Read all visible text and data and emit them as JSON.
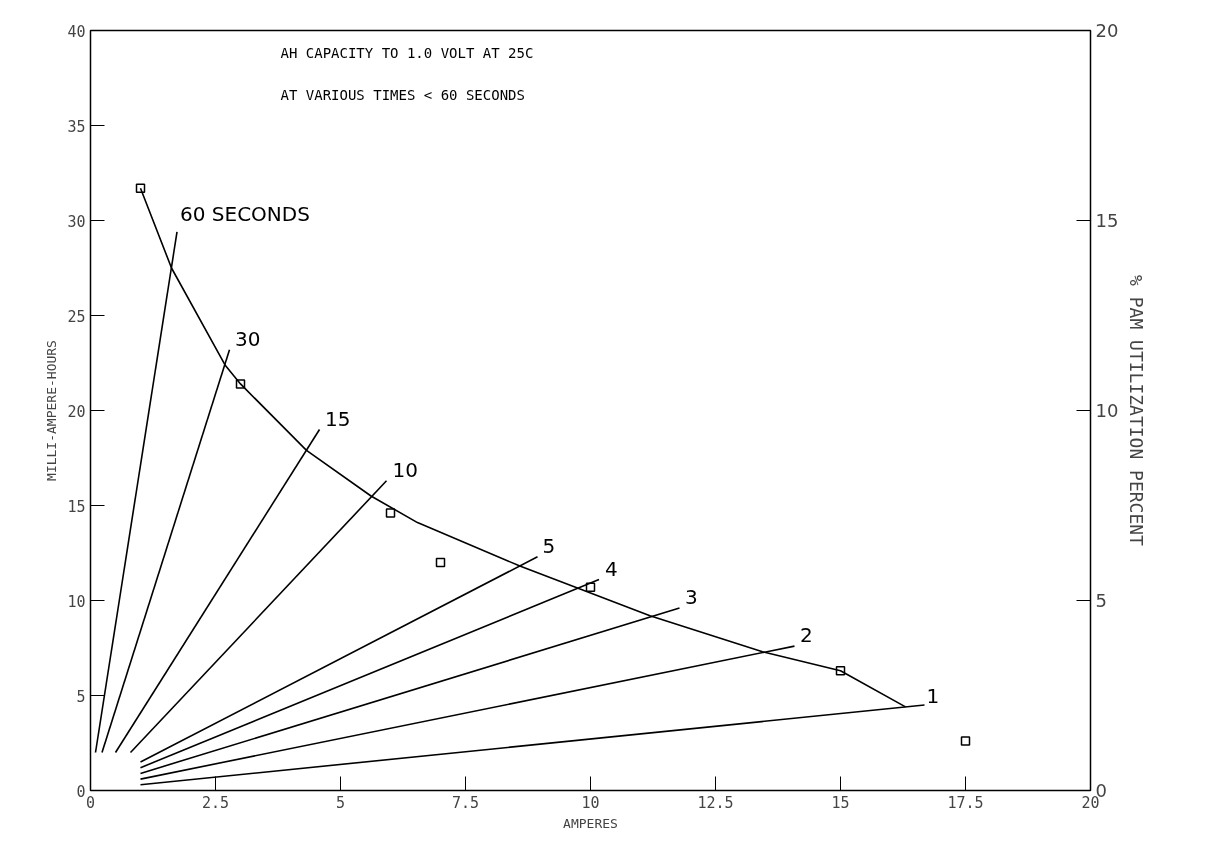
{
  "chart_data": {
    "type": "line",
    "xlabel": "AMPERES",
    "ylabel": "MILLI-AMPERE-HOURS",
    "y2label": "% PAM UTILIZATION PERCENT",
    "xlim": [
      0,
      20
    ],
    "xticks": [
      0,
      2.5,
      5,
      7.5,
      10,
      12.5,
      15,
      17.5,
      20
    ],
    "ylim": [
      0,
      40
    ],
    "yticks": [
      0,
      5,
      10,
      15,
      20,
      25,
      30,
      35,
      40
    ],
    "y2lim": [
      0,
      20
    ],
    "y2ticks": [
      0,
      5,
      10,
      15,
      20
    ],
    "grid": false,
    "line_style": "solid",
    "series": [
      {
        "color": "#000000",
        "x": [
          1,
          1.62,
          2.69,
          3,
          4.32,
          5.61,
          6.54,
          8.6,
          9.7,
          11.19,
          13.44,
          15,
          16.3
        ],
        "values": [
          31.7,
          27.5,
          22.4,
          21.4,
          17.9,
          15.5,
          14.1,
          11.8,
          10.7,
          9.2,
          7.3,
          6.3,
          4.4
        ]
      },
      {
        "type": "scatter",
        "marker": "square",
        "color": "#000000",
        "x": [
          1,
          3,
          6,
          7,
          10,
          15,
          17.5
        ],
        "values": [
          31.7,
          21.4,
          14.6,
          12.0,
          10.7,
          6.3,
          2.6
        ]
      },
      {
        "color": "#000000",
        "x": [
          0.1,
          1.73
        ],
        "values": [
          2,
          29.4
        ]
      },
      {
        "color": "#000000",
        "x": [
          0.23,
          2.78
        ],
        "values": [
          2,
          23.2
        ]
      },
      {
        "color": "#000000",
        "x": [
          0.5,
          4.58
        ],
        "values": [
          2,
          19.0
        ]
      },
      {
        "color": "#000000",
        "x": [
          0.8,
          5.92
        ],
        "values": [
          2,
          16.3
        ]
      },
      {
        "color": "#000000",
        "x": [
          1,
          8.94
        ],
        "values": [
          1.5,
          12.3
        ]
      },
      {
        "color": "#000000",
        "x": [
          1,
          10.17
        ],
        "values": [
          1.2,
          11.1
        ]
      },
      {
        "color": "#000000",
        "x": [
          1,
          11.78
        ],
        "values": [
          0.9,
          9.6
        ]
      },
      {
        "color": "#000000",
        "x": [
          1,
          14.08
        ],
        "values": [
          0.6,
          7.6
        ]
      },
      {
        "color": "#000000",
        "x": [
          1,
          16.68
        ],
        "values": [
          0.3,
          4.5
        ]
      }
    ],
    "annotations": [
      "AH CAPACITY TO 1.0 VOLT AT 25C",
      "AT VARIOUS TIMES < 60 SECONDS",
      {
        "text": "60 SECONDS",
        "x": 1.75,
        "y": 29.6
      },
      {
        "text": "30",
        "x": 2.85,
        "y": 23.3
      },
      {
        "text": "15",
        "x": 4.65,
        "y": 19.1
      },
      {
        "text": "10",
        "x": 6.0,
        "y": 16.4
      },
      {
        "text": "5",
        "x": 9.0,
        "y": 12.4
      },
      {
        "text": "4",
        "x": 10.25,
        "y": 11.2
      },
      {
        "text": "3",
        "x": 11.85,
        "y": 9.7
      },
      {
        "text": "2",
        "x": 14.15,
        "y": 7.7
      },
      {
        "text": "1",
        "x": 16.68,
        "y": 4.5
      }
    ]
  }
}
